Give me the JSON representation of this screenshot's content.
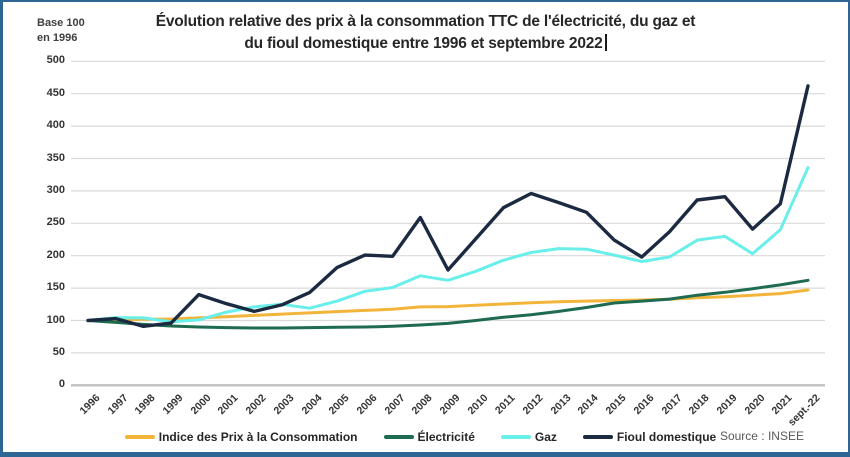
{
  "header": {
    "base_note_line1": "Base 100",
    "base_note_line2": "en 1996",
    "title_line1": "Évolution relative des prix à la consommation TTC de l'électricité, du gaz et",
    "title_line2": "du fioul domestique entre 1996 et septembre 2022"
  },
  "source": "Source : INSEE",
  "colors": {
    "frame_border": "#2d6595",
    "gridline": "#d9d9d9",
    "baseline": "#c0c0c0",
    "title_text": "#262626",
    "tick_text": "#333333",
    "source_text": "#595959"
  },
  "chart_data": {
    "type": "line",
    "title": "Évolution relative des prix à la consommation TTC de l'électricité, du gaz et du fioul domestique entre 1996 et septembre 2022",
    "xlabel": "",
    "ylabel": "Base 100 en 1996",
    "ylim": [
      0,
      500
    ],
    "ytick_step": 50,
    "grid": true,
    "legend_position": "bottom",
    "categories": [
      "1996",
      "1997",
      "1998",
      "1999",
      "2000",
      "2001",
      "2002",
      "2003",
      "2004",
      "2005",
      "2006",
      "2007",
      "2008",
      "2009",
      "2010",
      "2011",
      "2012",
      "2013",
      "2014",
      "2015",
      "2016",
      "2017",
      "2018",
      "2019",
      "2020",
      "2021",
      "sept.-22"
    ],
    "series": [
      {
        "name": "Indice des Prix à la Consommation",
        "color": "#f2b53a",
        "values": [
          100,
          101,
          101.8,
          102.3,
          104,
          105.8,
          107.8,
          109.8,
          111.8,
          113.8,
          115.6,
          117.3,
          121,
          121.5,
          123.5,
          125.5,
          127.5,
          129,
          130,
          130.8,
          131.6,
          132.8,
          135,
          136.6,
          139,
          141.5,
          147
        ]
      },
      {
        "name": "Électricité",
        "color": "#1e6b50",
        "values": [
          100,
          97,
          94,
          91.5,
          90,
          89,
          88.5,
          88.5,
          89,
          89.5,
          90,
          91,
          93,
          95.5,
          100,
          105,
          109,
          114,
          120,
          127,
          130,
          133,
          139,
          143.5,
          149,
          155,
          162
        ]
      },
      {
        "name": "Gaz",
        "color": "#68efe9",
        "values": [
          100,
          104.5,
          104,
          98,
          101,
          113,
          121,
          125,
          119,
          130,
          145,
          151,
          169,
          162,
          176,
          193,
          205,
          211,
          210,
          201,
          191,
          198,
          224,
          230,
          203,
          240,
          336
        ]
      },
      {
        "name": "Fioul domestique",
        "color": "#1b2a41",
        "values": [
          100,
          103,
          91,
          96,
          140,
          126,
          114,
          124,
          143,
          182,
          201,
          199,
          259,
          178,
          226,
          274,
          296,
          282,
          267,
          224,
          198,
          237,
          286,
          291,
          241,
          280,
          462
        ]
      }
    ]
  }
}
